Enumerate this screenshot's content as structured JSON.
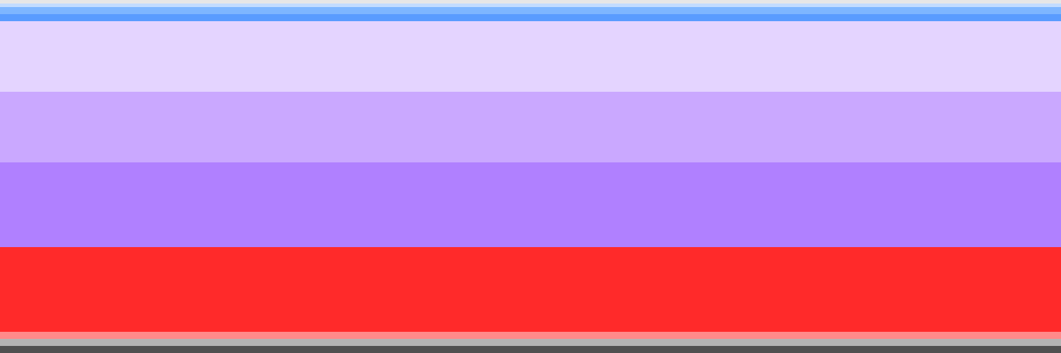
{
  "bands": [
    {
      "name": "band-0",
      "color": "#e6e6e6"
    },
    {
      "name": "band-1",
      "color": "#c2dcff"
    },
    {
      "name": "band-2",
      "color": "#7eb6ff"
    },
    {
      "name": "band-3",
      "color": "#5a9cff"
    },
    {
      "name": "band-4",
      "color": "#e4d4ff"
    },
    {
      "name": "band-5",
      "color": "#caa8ff"
    },
    {
      "name": "band-6",
      "color": "#b080ff"
    },
    {
      "name": "band-7",
      "color": "#ff2a2a"
    },
    {
      "name": "band-8",
      "color": "#ff8a8a"
    },
    {
      "name": "band-9",
      "color": "#b4b4b4"
    },
    {
      "name": "band-10",
      "color": "#505050"
    }
  ]
}
